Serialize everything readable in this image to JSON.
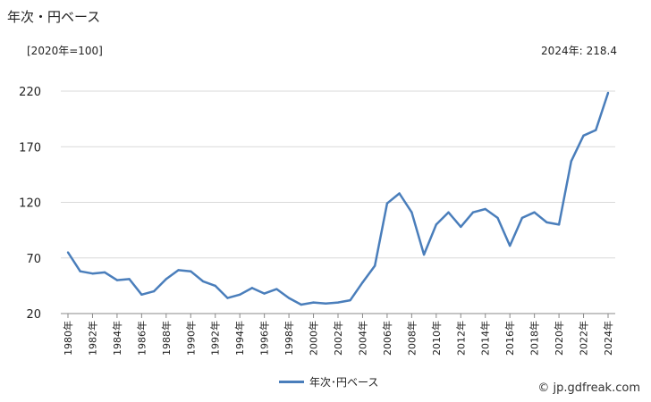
{
  "header": {
    "title": "年次・円ベース",
    "unit_note": "[2020年=100]",
    "latest_label": "2024年:",
    "latest_value": "218.4"
  },
  "legend": {
    "label": "年次･円ベース"
  },
  "footer": {
    "source": "© jp.gdfreak.com"
  },
  "colors": {
    "series": "#4a7ebb",
    "grid": "#d9d9d9",
    "axis": "#888888"
  },
  "chart_data": {
    "type": "line",
    "title": "",
    "xlabel": "",
    "ylabel": "",
    "ylim": [
      20,
      220
    ],
    "yticks": [
      20,
      70,
      120,
      170,
      220
    ],
    "grid": true,
    "legend_position": "bottom",
    "x_tick_labels": [
      "1980年",
      "1982年",
      "1984年",
      "1986年",
      "1988年",
      "1990年",
      "1992年",
      "1994年",
      "1996年",
      "1998年",
      "2000年",
      "2002年",
      "2004年",
      "2006年",
      "2008年",
      "2010年",
      "2012年",
      "2014年",
      "2016年",
      "2018年",
      "2020年",
      "2022年",
      "2024年"
    ],
    "x": [
      1980,
      1981,
      1982,
      1983,
      1984,
      1985,
      1986,
      1987,
      1988,
      1989,
      1990,
      1991,
      1992,
      1993,
      1994,
      1995,
      1996,
      1997,
      1998,
      1999,
      2000,
      2001,
      2002,
      2003,
      2004,
      2005,
      2006,
      2007,
      2008,
      2009,
      2010,
      2011,
      2012,
      2013,
      2014,
      2015,
      2016,
      2017,
      2018,
      2019,
      2020,
      2021,
      2022,
      2023,
      2024
    ],
    "series": [
      {
        "name": "年次･円ベース",
        "values": [
          75,
          58,
          56,
          57,
          50,
          51,
          37,
          40,
          51,
          59,
          58,
          49,
          45,
          34,
          37,
          43,
          38,
          42,
          34,
          28,
          30,
          29,
          30,
          32,
          48,
          63,
          119,
          128,
          111,
          73,
          100,
          111,
          98,
          111,
          114,
          106,
          81,
          106,
          111,
          102,
          100,
          157,
          180,
          185,
          218.4
        ]
      }
    ]
  }
}
